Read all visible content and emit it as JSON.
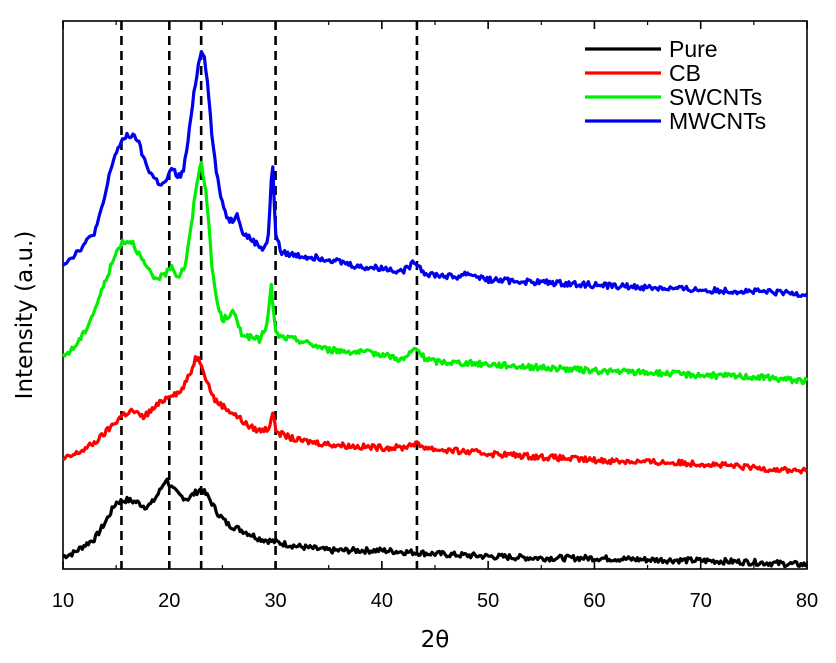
{
  "chart_data": {
    "type": "line",
    "title": "",
    "xlabel": "2θ",
    "ylabel": "Intensity (a.u.)",
    "xlim": [
      10,
      80
    ],
    "xticks": [
      10,
      20,
      30,
      40,
      50,
      60,
      70,
      80
    ],
    "yticks_shown": false,
    "grid": false,
    "legend_position": "top-right",
    "reference_lines": [
      15.5,
      20,
      23,
      30,
      43.3
    ],
    "series": [
      {
        "name": "Pure",
        "color": "#000000",
        "x": [
          10,
          11,
          12,
          13,
          14,
          15,
          16,
          17,
          17.7,
          18.3,
          19,
          19.7,
          20.3,
          21,
          21.7,
          22.4,
          23,
          23.7,
          24.5,
          25.5,
          27,
          28.5,
          30,
          32,
          35,
          40,
          45,
          50,
          55,
          60,
          65,
          70,
          75,
          80
        ],
        "y": [
          1.5,
          1.9,
          2.8,
          3.6,
          5.6,
          7.9,
          8.2,
          7.9,
          7.4,
          7.7,
          9.0,
          10.7,
          9.5,
          8.7,
          8.3,
          9.0,
          9.5,
          8.5,
          6.7,
          5.3,
          4.5,
          3.6,
          3.2,
          2.7,
          2.2,
          2.2,
          1.8,
          1.5,
          1.3,
          1.3,
          1.1,
          1.0,
          0.8,
          0.5
        ]
      },
      {
        "name": "CB",
        "color": "#ff0000",
        "x": [
          10,
          11,
          12,
          13,
          14,
          15,
          15.5,
          16.5,
          17.5,
          18.5,
          19.5,
          20.2,
          21,
          22,
          22.5,
          23,
          23.6,
          24.3,
          25.2,
          26.3,
          27.5,
          28.5,
          29.4,
          29.7,
          30,
          30.5,
          32,
          35,
          38,
          40,
          42,
          43,
          44,
          45,
          50,
          55,
          60,
          65,
          70,
          75,
          80
        ],
        "y": [
          13.0,
          13.5,
          14.2,
          15.0,
          16.2,
          17.5,
          18.2,
          18.8,
          18.0,
          19.0,
          20.1,
          20.8,
          20.9,
          23.2,
          25.2,
          24.5,
          22.1,
          20.0,
          19.2,
          18.2,
          16.9,
          16.4,
          16.7,
          18.8,
          16.6,
          16.0,
          15.3,
          14.8,
          14.5,
          14.4,
          14.4,
          14.9,
          14.5,
          14.2,
          13.7,
          13.3,
          12.9,
          12.7,
          12.5,
          12.0,
          11.6
        ]
      },
      {
        "name": "SWCNTs",
        "color": "#00ee00",
        "x": [
          10,
          11,
          12,
          13,
          14,
          15,
          15.5,
          16.5,
          17.5,
          18.5,
          19.5,
          20.2,
          20.8,
          21.5,
          22,
          22.6,
          23,
          23.5,
          24,
          24.5,
          25,
          26,
          26.8,
          27.5,
          28.5,
          29.2,
          29.6,
          30,
          30.5,
          32,
          35,
          40,
          42,
          43.2,
          44,
          45,
          50,
          55,
          60,
          65,
          70,
          75,
          80
        ],
        "y": [
          25.2,
          26.2,
          28.0,
          30.8,
          34.2,
          37.5,
          38.8,
          38.9,
          36.5,
          34.5,
          34.7,
          36.1,
          34.6,
          36.0,
          40.0,
          46.0,
          48.2,
          44.5,
          36.0,
          31.5,
          29.5,
          30.5,
          28.0,
          27.5,
          27.2,
          29.0,
          33.5,
          28.0,
          27.5,
          27.2,
          26.0,
          25.5,
          24.8,
          26.2,
          25.0,
          24.6,
          24.3,
          23.9,
          23.5,
          23.3,
          23.0,
          22.8,
          22.3
        ]
      },
      {
        "name": "MWCNTs",
        "color": "#0000ee",
        "x": [
          10,
          11,
          12,
          13,
          13.5,
          14,
          14.5,
          15,
          15.5,
          16,
          16.5,
          17,
          17.5,
          18,
          18.5,
          19,
          19.5,
          20,
          20.3,
          20.8,
          21.3,
          21.8,
          22.2,
          22.7,
          23,
          23.3,
          23.7,
          24,
          24.5,
          25,
          25.5,
          26,
          26.4,
          26.8,
          27.3,
          28,
          28.8,
          29.3,
          29.7,
          30,
          30.5,
          32,
          35,
          38,
          40,
          42,
          43.2,
          44,
          45,
          47,
          48,
          50,
          55,
          60,
          65,
          70,
          75,
          80
        ],
        "y": [
          36.2,
          37.2,
          38.5,
          40.0,
          42.0,
          44.5,
          47.5,
          49.5,
          50.5,
          51.5,
          51.3,
          51.0,
          49.0,
          47.5,
          46.5,
          45.8,
          45.6,
          46.8,
          47.5,
          46.5,
          47.0,
          51.0,
          55.5,
          59.5,
          61.5,
          61.0,
          56.5,
          51.5,
          46.5,
          43.5,
          41.5,
          41.3,
          42.5,
          40.0,
          39.5,
          38.8,
          38.0,
          39.0,
          48.5,
          40.0,
          37.5,
          37.2,
          36.8,
          35.8,
          35.7,
          35.3,
          36.5,
          35.1,
          34.9,
          34.6,
          35.1,
          34.3,
          34.0,
          33.7,
          33.4,
          33.1,
          32.9,
          32.6
        ]
      }
    ]
  }
}
